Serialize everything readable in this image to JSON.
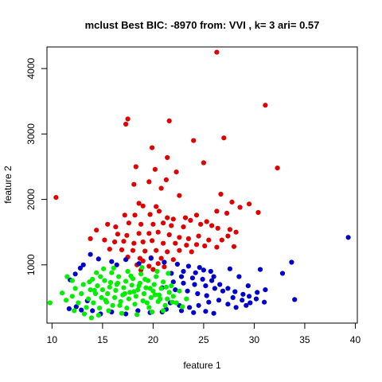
{
  "chart_data": {
    "type": "scatter",
    "title": "mclust Best BIC: -8970 from: VVI , k= 3 ari= 0.57",
    "xlabel": "feature 1",
    "ylabel": "feature 2",
    "xlim": [
      9.5,
      40.2
    ],
    "ylim": [
      110,
      4330
    ],
    "x_ticks": [
      10,
      15,
      20,
      25,
      30,
      35,
      40
    ],
    "y_ticks": [
      1000,
      2000,
      3000,
      4000
    ],
    "grid": false,
    "legend": "none",
    "series": [
      {
        "color": "#DF0000",
        "points": [
          [
            26.3,
            4250
          ],
          [
            31.1,
            3440
          ],
          [
            17.5,
            3230
          ],
          [
            17.3,
            3150
          ],
          [
            21.6,
            3200
          ],
          [
            27.0,
            2940
          ],
          [
            24.0,
            2900
          ],
          [
            32.3,
            2480
          ],
          [
            19.9,
            2790
          ],
          [
            25.0,
            2560
          ],
          [
            21.4,
            2640
          ],
          [
            18.3,
            2500
          ],
          [
            20.2,
            2460
          ],
          [
            22.3,
            2420
          ],
          [
            10.4,
            2030
          ],
          [
            18.1,
            2230
          ],
          [
            19.6,
            2270
          ],
          [
            21.3,
            2300
          ],
          [
            20.8,
            2170
          ],
          [
            22.6,
            2060
          ],
          [
            26.7,
            2080
          ],
          [
            27.8,
            1960
          ],
          [
            29.5,
            1930
          ],
          [
            28.6,
            1880
          ],
          [
            30.4,
            1800
          ],
          [
            26.3,
            1820
          ],
          [
            27.3,
            1790
          ],
          [
            18.6,
            1940
          ],
          [
            19.0,
            1900
          ],
          [
            20.3,
            1890
          ],
          [
            17.2,
            1760
          ],
          [
            18.2,
            1760
          ],
          [
            19.7,
            1770
          ],
          [
            20.6,
            1820
          ],
          [
            21.4,
            1720
          ],
          [
            22.0,
            1700
          ],
          [
            23.2,
            1720
          ],
          [
            24.3,
            1760
          ],
          [
            25.3,
            1660
          ],
          [
            24.7,
            1620
          ],
          [
            25.8,
            1600
          ],
          [
            26.4,
            1560
          ],
          [
            27.6,
            1540
          ],
          [
            28.2,
            1500
          ],
          [
            15.5,
            1620
          ],
          [
            16.3,
            1580
          ],
          [
            17.6,
            1640
          ],
          [
            18.8,
            1620
          ],
          [
            20.0,
            1620
          ],
          [
            21.0,
            1640
          ],
          [
            21.8,
            1600
          ],
          [
            23.0,
            1580
          ],
          [
            23.7,
            1680
          ],
          [
            14.4,
            1530
          ],
          [
            16.5,
            1470
          ],
          [
            17.4,
            1450
          ],
          [
            18.6,
            1480
          ],
          [
            19.6,
            1480
          ],
          [
            20.5,
            1500
          ],
          [
            21.6,
            1460
          ],
          [
            22.6,
            1420
          ],
          [
            23.5,
            1400
          ],
          [
            24.5,
            1440
          ],
          [
            25.5,
            1380
          ],
          [
            26.8,
            1380
          ],
          [
            27.4,
            1440
          ],
          [
            28.0,
            1280
          ],
          [
            13.8,
            1400
          ],
          [
            15.2,
            1380
          ],
          [
            16.2,
            1350
          ],
          [
            17.1,
            1360
          ],
          [
            18.1,
            1330
          ],
          [
            19.0,
            1350
          ],
          [
            19.9,
            1370
          ],
          [
            21.0,
            1330
          ],
          [
            22.2,
            1330
          ],
          [
            23.3,
            1300
          ],
          [
            24.3,
            1310
          ],
          [
            25.1,
            1290
          ],
          [
            26.3,
            1270
          ],
          [
            15.7,
            1240
          ],
          [
            16.9,
            1230
          ],
          [
            18.0,
            1220
          ],
          [
            19.2,
            1210
          ],
          [
            20.3,
            1220
          ],
          [
            21.4,
            1200
          ],
          [
            22.6,
            1220
          ],
          [
            23.8,
            1200
          ],
          [
            17.5,
            1120
          ],
          [
            18.7,
            1100
          ],
          [
            19.8,
            1110
          ],
          [
            20.8,
            1100
          ],
          [
            22.0,
            1080
          ],
          [
            19.0,
            1060
          ],
          [
            20.5,
            1020
          ],
          [
            18.4,
            1000
          ],
          [
            19.6,
            980
          ],
          [
            21.1,
            970
          ],
          [
            20.0,
            930
          ],
          [
            18.8,
            920
          ]
        ]
      },
      {
        "color": "#0000CD",
        "points": [
          [
            39.3,
            1420
          ],
          [
            33.7,
            1040
          ],
          [
            30.6,
            930
          ],
          [
            32.8,
            870
          ],
          [
            34.0,
            470
          ],
          [
            12.3,
            860
          ],
          [
            11.8,
            770
          ],
          [
            12.8,
            950
          ],
          [
            13.1,
            1000
          ],
          [
            13.8,
            1160
          ],
          [
            14.6,
            1090
          ],
          [
            15.9,
            1050
          ],
          [
            16.4,
            1000
          ],
          [
            17.3,
            1080
          ],
          [
            18.6,
            1020
          ],
          [
            19.8,
            1100
          ],
          [
            21.1,
            1040
          ],
          [
            22.4,
            1010
          ],
          [
            23.5,
            980
          ],
          [
            24.6,
            960
          ],
          [
            23.0,
            900
          ],
          [
            24.2,
            880
          ],
          [
            25.0,
            920
          ],
          [
            25.7,
            900
          ],
          [
            26.0,
            820
          ],
          [
            21.8,
            870
          ],
          [
            22.8,
            820
          ],
          [
            23.9,
            800
          ],
          [
            24.9,
            780
          ],
          [
            25.8,
            760
          ],
          [
            26.6,
            700
          ],
          [
            27.4,
            640
          ],
          [
            28.1,
            590
          ],
          [
            28.9,
            550
          ],
          [
            29.5,
            520
          ],
          [
            22.0,
            740
          ],
          [
            23.0,
            720
          ],
          [
            24.1,
            700
          ],
          [
            25.2,
            680
          ],
          [
            26.1,
            640
          ],
          [
            20.9,
            650
          ],
          [
            22.2,
            620
          ],
          [
            23.4,
            600
          ],
          [
            24.4,
            560
          ],
          [
            25.3,
            530
          ],
          [
            26.9,
            600
          ],
          [
            27.9,
            500
          ],
          [
            28.8,
            460
          ],
          [
            29.6,
            420
          ],
          [
            30.3,
            580
          ],
          [
            31.1,
            620
          ],
          [
            29.2,
            380
          ],
          [
            28.2,
            350
          ],
          [
            27.4,
            400
          ],
          [
            26.5,
            460
          ],
          [
            25.5,
            430
          ],
          [
            24.5,
            380
          ],
          [
            23.6,
            350
          ],
          [
            22.6,
            380
          ],
          [
            21.7,
            420
          ],
          [
            25.2,
            290
          ],
          [
            26.0,
            260
          ],
          [
            24.0,
            270
          ],
          [
            22.8,
            300
          ],
          [
            21.3,
            320
          ],
          [
            27.6,
            940
          ],
          [
            28.5,
            820
          ],
          [
            29.4,
            680
          ],
          [
            30.2,
            480
          ],
          [
            31.0,
            430
          ],
          [
            11.7,
            330
          ],
          [
            12.4,
            360
          ],
          [
            12.9,
            310
          ],
          [
            13.5,
            450
          ],
          [
            14.0,
            300
          ],
          [
            14.8,
            250
          ],
          [
            15.9,
            280
          ],
          [
            17.3,
            250
          ],
          [
            18.5,
            300
          ],
          [
            19.7,
            270
          ],
          [
            20.9,
            280
          ]
        ]
      },
      {
        "color": "#00EE00",
        "points": [
          [
            9.8,
            420
          ],
          [
            11.0,
            570
          ],
          [
            11.4,
            460
          ],
          [
            12.0,
            520
          ],
          [
            12.3,
            640
          ],
          [
            12.6,
            420
          ],
          [
            12.9,
            560
          ],
          [
            13.1,
            700
          ],
          [
            13.4,
            350
          ],
          [
            13.6,
            480
          ],
          [
            13.8,
            620
          ],
          [
            14.0,
            780
          ],
          [
            14.1,
            420
          ],
          [
            14.3,
            560
          ],
          [
            14.5,
            680
          ],
          [
            14.7,
            340
          ],
          [
            14.9,
            500
          ],
          [
            15.0,
            620
          ],
          [
            15.2,
            760
          ],
          [
            15.4,
            430
          ],
          [
            15.5,
            560
          ],
          [
            15.7,
            660
          ],
          [
            15.9,
            880
          ],
          [
            16.0,
            380
          ],
          [
            16.2,
            500
          ],
          [
            16.3,
            610
          ],
          [
            16.5,
            720
          ],
          [
            16.6,
            820
          ],
          [
            16.8,
            440
          ],
          [
            17.0,
            540
          ],
          [
            17.1,
            650
          ],
          [
            17.3,
            750
          ],
          [
            17.4,
            340
          ],
          [
            17.6,
            480
          ],
          [
            17.7,
            580
          ],
          [
            17.9,
            690
          ],
          [
            18.0,
            790
          ],
          [
            18.2,
            400
          ],
          [
            18.3,
            520
          ],
          [
            18.5,
            620
          ],
          [
            18.7,
            720
          ],
          [
            18.8,
            860
          ],
          [
            19.0,
            450
          ],
          [
            19.1,
            560
          ],
          [
            19.3,
            650
          ],
          [
            19.5,
            760
          ],
          [
            19.6,
            350
          ],
          [
            19.8,
            500
          ],
          [
            20.0,
            600
          ],
          [
            20.1,
            700
          ],
          [
            20.3,
            820
          ],
          [
            20.5,
            440
          ],
          [
            20.6,
            540
          ],
          [
            20.8,
            640
          ],
          [
            21.0,
            740
          ],
          [
            21.2,
            380
          ],
          [
            21.4,
            480
          ],
          [
            21.6,
            580
          ],
          [
            21.8,
            680
          ],
          [
            22.0,
            520
          ],
          [
            22.3,
            420
          ],
          [
            22.6,
            600
          ],
          [
            22.9,
            360
          ],
          [
            23.3,
            480
          ],
          [
            13.2,
            250
          ],
          [
            13.9,
            190
          ],
          [
            14.6,
            230
          ],
          [
            15.6,
            300
          ],
          [
            16.9,
            260
          ],
          [
            18.4,
            240
          ],
          [
            19.9,
            280
          ],
          [
            21.0,
            300
          ],
          [
            12.2,
            300
          ],
          [
            11.5,
            820
          ],
          [
            12.0,
            760
          ],
          [
            14.4,
            880
          ],
          [
            15.1,
            940
          ],
          [
            16.1,
            950
          ],
          [
            17.5,
            900
          ],
          [
            18.9,
            960
          ],
          [
            20.4,
            900
          ],
          [
            21.5,
            870
          ],
          [
            15.3,
            460
          ],
          [
            16.7,
            380
          ],
          [
            18.1,
            590
          ],
          [
            19.4,
            420
          ],
          [
            20.7,
            480
          ],
          [
            14.2,
            610
          ],
          [
            15.8,
            730
          ],
          [
            17.2,
            560
          ],
          [
            18.6,
            680
          ],
          [
            19.2,
            780
          ],
          [
            20.2,
            540
          ],
          [
            21.3,
            660
          ],
          [
            13.7,
            740
          ],
          [
            14.8,
            820
          ],
          [
            16.4,
            700
          ],
          [
            17.8,
            830
          ],
          [
            19.7,
            640
          ],
          [
            21.9,
            430
          ]
        ]
      }
    ]
  }
}
